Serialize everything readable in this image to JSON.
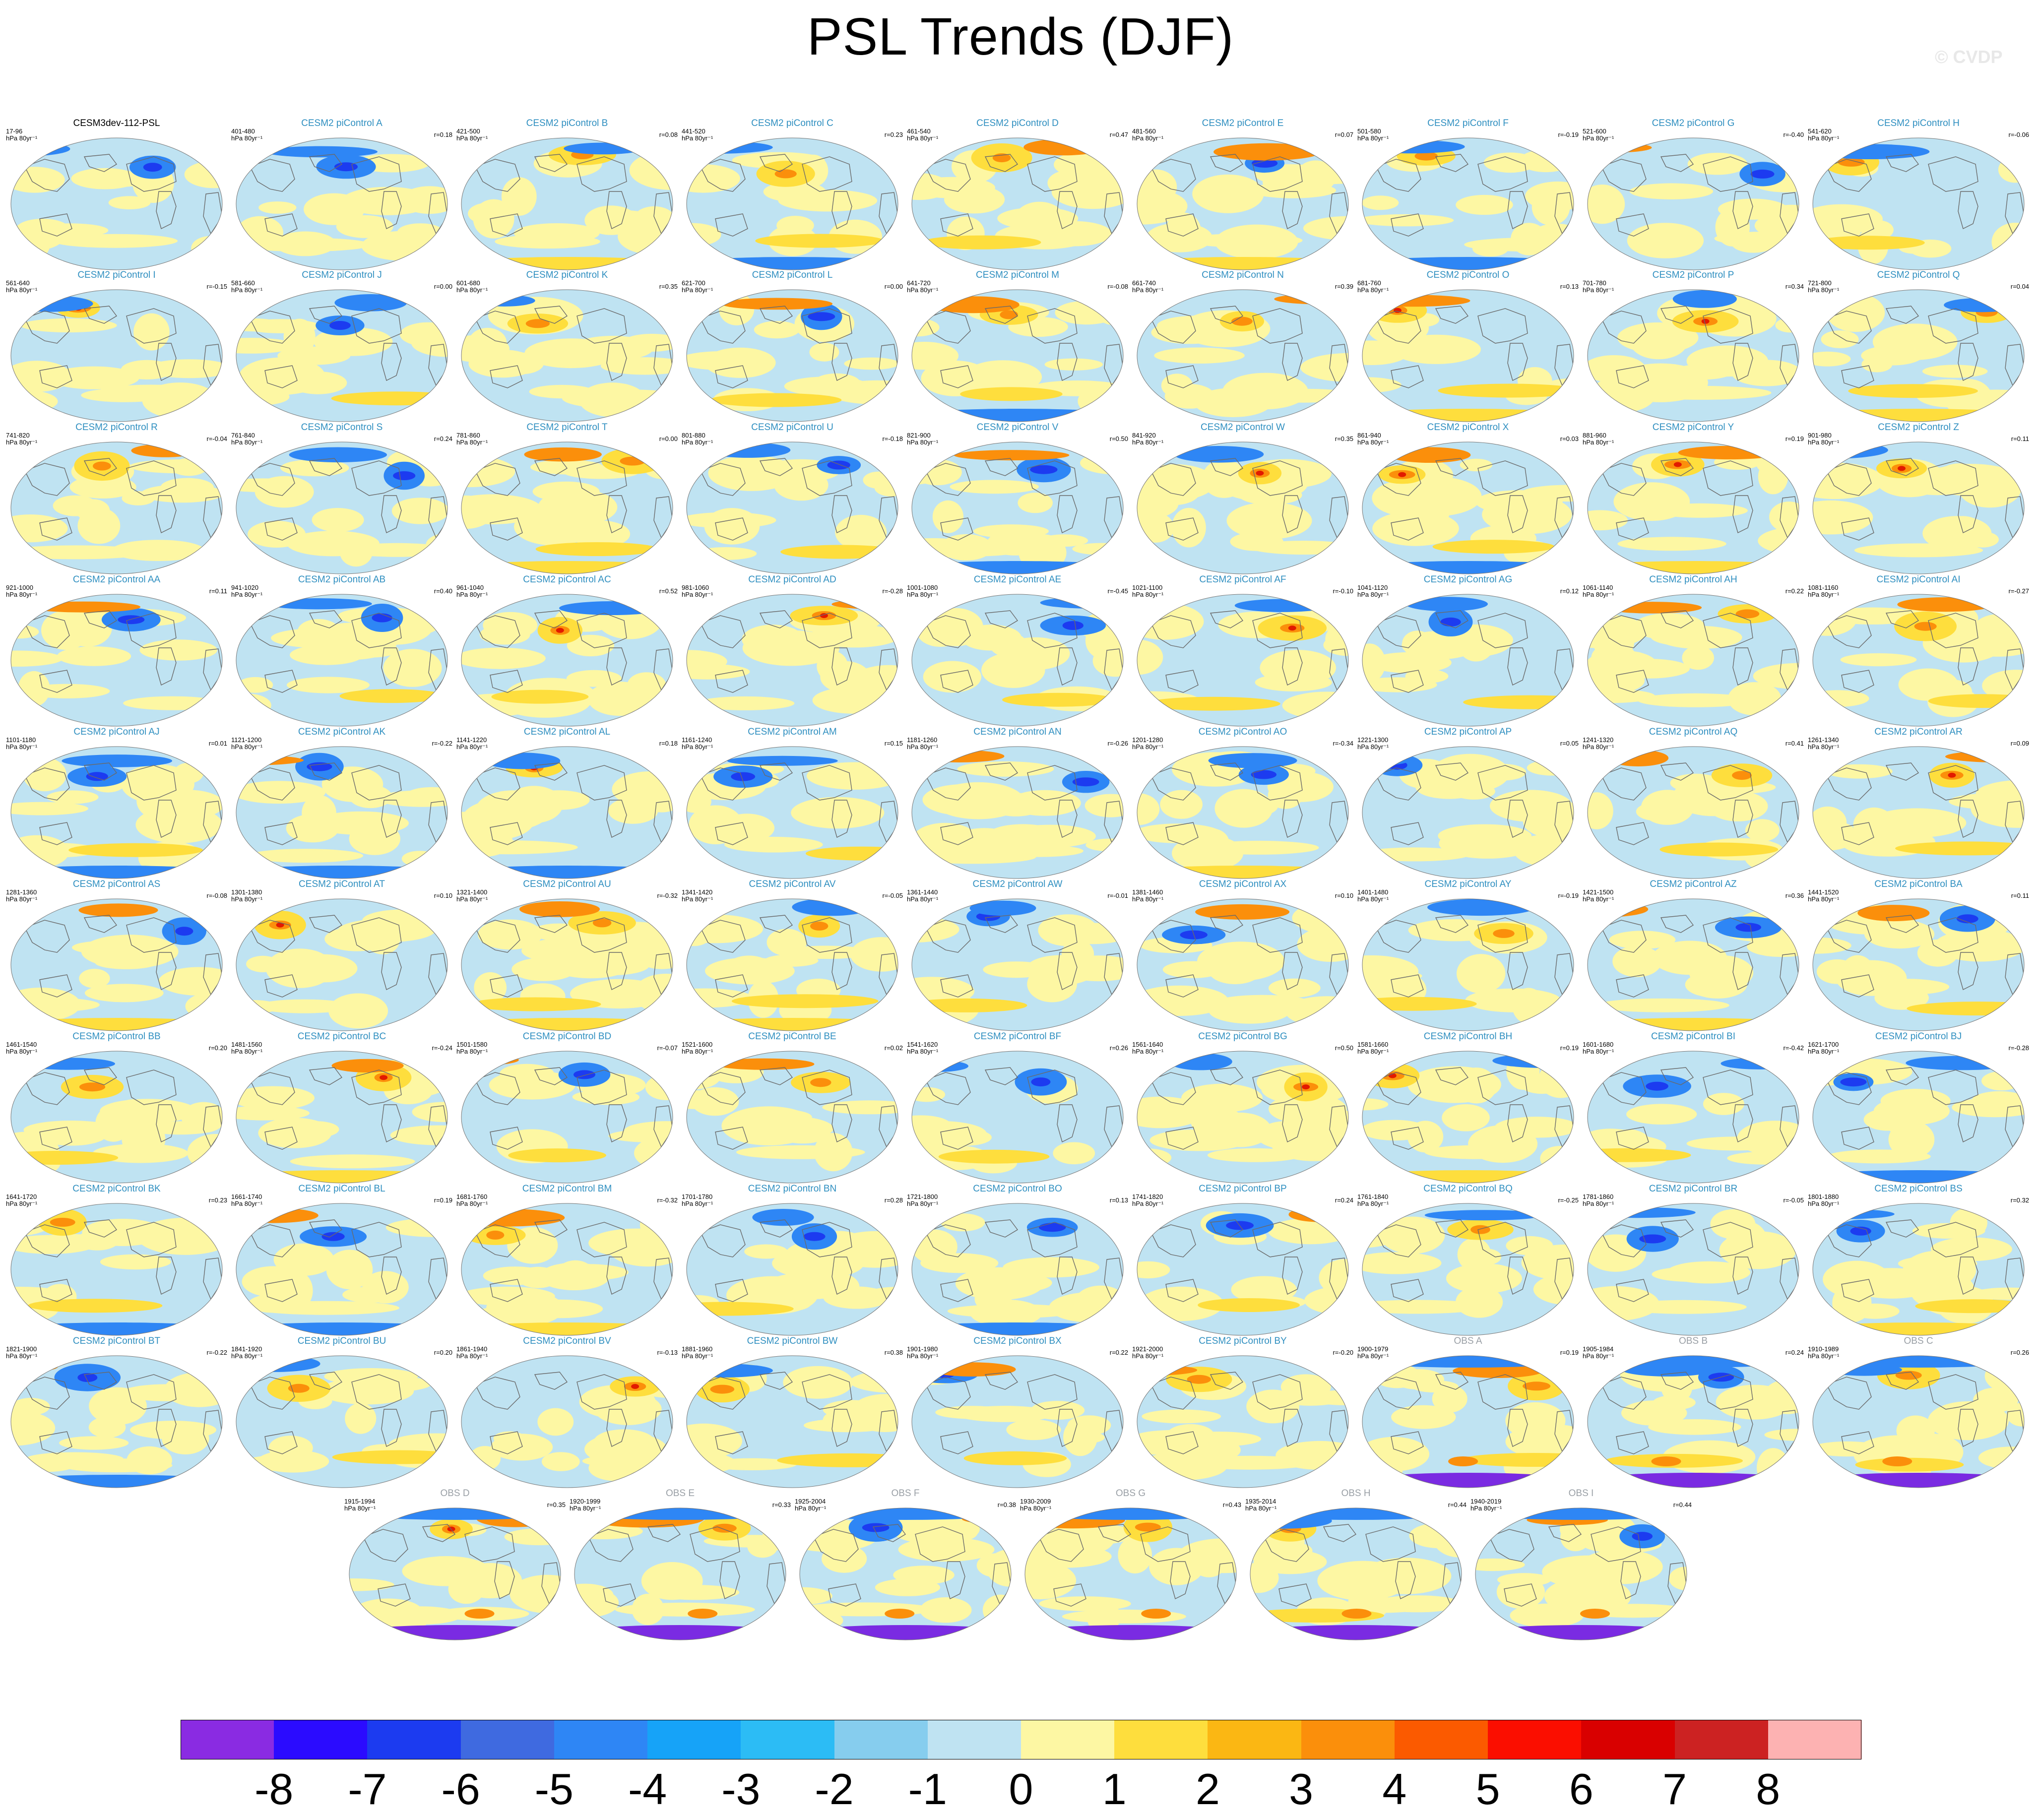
{
  "title": "PSL Trends (DJF)",
  "watermark": "© CVDP",
  "units_label": "hPa 80yr⁻¹",
  "panels": [
    {
      "title": "CESM3dev-112-PSL",
      "years": "17-96",
      "r": "",
      "kind": "first"
    },
    {
      "title": "CESM2 piControl A",
      "years": "401-480",
      "r": "r=0.18",
      "kind": "model"
    },
    {
      "title": "CESM2 piControl B",
      "years": "421-500",
      "r": "r=0.08",
      "kind": "model"
    },
    {
      "title": "CESM2 piControl C",
      "years": "441-520",
      "r": "r=0.23",
      "kind": "model"
    },
    {
      "title": "CESM2 piControl D",
      "years": "461-540",
      "r": "r=0.47",
      "kind": "model"
    },
    {
      "title": "CESM2 piControl E",
      "years": "481-560",
      "r": "r=0.07",
      "kind": "model"
    },
    {
      "title": "CESM2 piControl F",
      "years": "501-580",
      "r": "r=-0.19",
      "kind": "model"
    },
    {
      "title": "CESM2 piControl G",
      "years": "521-600",
      "r": "r=-0.40",
      "kind": "model"
    },
    {
      "title": "CESM2 piControl H",
      "years": "541-620",
      "r": "r=-0.06",
      "kind": "model"
    },
    {
      "title": "CESM2 piControl I",
      "years": "561-640",
      "r": "r=-0.15",
      "kind": "model"
    },
    {
      "title": "CESM2 piControl J",
      "years": "581-660",
      "r": "r=0.00",
      "kind": "model"
    },
    {
      "title": "CESM2 piControl K",
      "years": "601-680",
      "r": "r=0.35",
      "kind": "model"
    },
    {
      "title": "CESM2 piControl L",
      "years": "621-700",
      "r": "r=0.00",
      "kind": "model"
    },
    {
      "title": "CESM2 piControl M",
      "years": "641-720",
      "r": "r=-0.08",
      "kind": "model"
    },
    {
      "title": "CESM2 piControl N",
      "years": "661-740",
      "r": "r=0.39",
      "kind": "model"
    },
    {
      "title": "CESM2 piControl O",
      "years": "681-760",
      "r": "r=0.13",
      "kind": "model"
    },
    {
      "title": "CESM2 piControl P",
      "years": "701-780",
      "r": "r=0.34",
      "kind": "model"
    },
    {
      "title": "CESM2 piControl Q",
      "years": "721-800",
      "r": "r=0.04",
      "kind": "model"
    },
    {
      "title": "CESM2 piControl R",
      "years": "741-820",
      "r": "r=-0.04",
      "kind": "model"
    },
    {
      "title": "CESM2 piControl S",
      "years": "761-840",
      "r": "r=0.24",
      "kind": "model"
    },
    {
      "title": "CESM2 piControl T",
      "years": "781-860",
      "r": "r=0.00",
      "kind": "model"
    },
    {
      "title": "CESM2 piControl U",
      "years": "801-880",
      "r": "r=-0.18",
      "kind": "model"
    },
    {
      "title": "CESM2 piControl V",
      "years": "821-900",
      "r": "r=0.50",
      "kind": "model"
    },
    {
      "title": "CESM2 piControl W",
      "years": "841-920",
      "r": "r=0.35",
      "kind": "model"
    },
    {
      "title": "CESM2 piControl X",
      "years": "861-940",
      "r": "r=0.03",
      "kind": "model"
    },
    {
      "title": "CESM2 piControl Y",
      "years": "881-960",
      "r": "r=0.19",
      "kind": "model"
    },
    {
      "title": "CESM2 piControl Z",
      "years": "901-980",
      "r": "r=0.11",
      "kind": "model"
    },
    {
      "title": "CESM2 piControl AA",
      "years": "921-1000",
      "r": "r=0.11",
      "kind": "model"
    },
    {
      "title": "CESM2 piControl AB",
      "years": "941-1020",
      "r": "r=0.40",
      "kind": "model"
    },
    {
      "title": "CESM2 piControl AC",
      "years": "961-1040",
      "r": "r=0.52",
      "kind": "model"
    },
    {
      "title": "CESM2 piControl AD",
      "years": "981-1060",
      "r": "r=-0.28",
      "kind": "model"
    },
    {
      "title": "CESM2 piControl AE",
      "years": "1001-1080",
      "r": "r=-0.45",
      "kind": "model"
    },
    {
      "title": "CESM2 piControl AF",
      "years": "1021-1100",
      "r": "r=-0.10",
      "kind": "model"
    },
    {
      "title": "CESM2 piControl AG",
      "years": "1041-1120",
      "r": "r=0.12",
      "kind": "model"
    },
    {
      "title": "CESM2 piControl AH",
      "years": "1061-1140",
      "r": "r=0.22",
      "kind": "model"
    },
    {
      "title": "CESM2 piControl AI",
      "years": "1081-1160",
      "r": "r=-0.27",
      "kind": "model"
    },
    {
      "title": "CESM2 piControl AJ",
      "years": "1101-1180",
      "r": "r=0.01",
      "kind": "model"
    },
    {
      "title": "CESM2 piControl AK",
      "years": "1121-1200",
      "r": "r=-0.22",
      "kind": "model"
    },
    {
      "title": "CESM2 piControl AL",
      "years": "1141-1220",
      "r": "r=0.18",
      "kind": "model"
    },
    {
      "title": "CESM2 piControl AM",
      "years": "1161-1240",
      "r": "r=0.15",
      "kind": "model"
    },
    {
      "title": "CESM2 piControl AN",
      "years": "1181-1260",
      "r": "r=-0.26",
      "kind": "model"
    },
    {
      "title": "CESM2 piControl AO",
      "years": "1201-1280",
      "r": "r=-0.34",
      "kind": "model"
    },
    {
      "title": "CESM2 piControl AP",
      "years": "1221-1300",
      "r": "r=0.05",
      "kind": "model"
    },
    {
      "title": "CESM2 piControl AQ",
      "years": "1241-1320",
      "r": "r=0.41",
      "kind": "model"
    },
    {
      "title": "CESM2 piControl AR",
      "years": "1261-1340",
      "r": "r=0.09",
      "kind": "model"
    },
    {
      "title": "CESM2 piControl AS",
      "years": "1281-1360",
      "r": "r=-0.08",
      "kind": "model"
    },
    {
      "title": "CESM2 piControl AT",
      "years": "1301-1380",
      "r": "r=0.10",
      "kind": "model"
    },
    {
      "title": "CESM2 piControl AU",
      "years": "1321-1400",
      "r": "r=-0.32",
      "kind": "model"
    },
    {
      "title": "CESM2 piControl AV",
      "years": "1341-1420",
      "r": "r=-0.05",
      "kind": "model"
    },
    {
      "title": "CESM2 piControl AW",
      "years": "1361-1440",
      "r": "r=-0.01",
      "kind": "model"
    },
    {
      "title": "CESM2 piControl AX",
      "years": "1381-1460",
      "r": "r=0.10",
      "kind": "model"
    },
    {
      "title": "CESM2 piControl AY",
      "years": "1401-1480",
      "r": "r=-0.19",
      "kind": "model"
    },
    {
      "title": "CESM2 piControl AZ",
      "years": "1421-1500",
      "r": "r=0.36",
      "kind": "model"
    },
    {
      "title": "CESM2 piControl BA",
      "years": "1441-1520",
      "r": "r=0.11",
      "kind": "model"
    },
    {
      "title": "CESM2 piControl BB",
      "years": "1461-1540",
      "r": "r=0.20",
      "kind": "model"
    },
    {
      "title": "CESM2 piControl BC",
      "years": "1481-1560",
      "r": "r=-0.24",
      "kind": "model"
    },
    {
      "title": "CESM2 piControl BD",
      "years": "1501-1580",
      "r": "r=-0.07",
      "kind": "model"
    },
    {
      "title": "CESM2 piControl BE",
      "years": "1521-1600",
      "r": "r=0.02",
      "kind": "model"
    },
    {
      "title": "CESM2 piControl BF",
      "years": "1541-1620",
      "r": "r=0.26",
      "kind": "model"
    },
    {
      "title": "CESM2 piControl BG",
      "years": "1561-1640",
      "r": "r=0.50",
      "kind": "model"
    },
    {
      "title": "CESM2 piControl BH",
      "years": "1581-1660",
      "r": "r=0.19",
      "kind": "model"
    },
    {
      "title": "CESM2 piControl BI",
      "years": "1601-1680",
      "r": "r=-0.42",
      "kind": "model"
    },
    {
      "title": "CESM2 piControl BJ",
      "years": "1621-1700",
      "r": "r=-0.28",
      "kind": "model"
    },
    {
      "title": "CESM2 piControl BK",
      "years": "1641-1720",
      "r": "r=0.23",
      "kind": "model"
    },
    {
      "title": "CESM2 piControl BL",
      "years": "1661-1740",
      "r": "r=0.19",
      "kind": "model"
    },
    {
      "title": "CESM2 piControl BM",
      "years": "1681-1760",
      "r": "r=-0.32",
      "kind": "model"
    },
    {
      "title": "CESM2 piControl BN",
      "years": "1701-1780",
      "r": "r=0.28",
      "kind": "model"
    },
    {
      "title": "CESM2 piControl BO",
      "years": "1721-1800",
      "r": "r=0.13",
      "kind": "model"
    },
    {
      "title": "CESM2 piControl BP",
      "years": "1741-1820",
      "r": "r=0.24",
      "kind": "model"
    },
    {
      "title": "CESM2 piControl BQ",
      "years": "1761-1840",
      "r": "r=-0.25",
      "kind": "model"
    },
    {
      "title": "CESM2 piControl BR",
      "years": "1781-1860",
      "r": "r=-0.05",
      "kind": "model"
    },
    {
      "title": "CESM2 piControl BS",
      "years": "1801-1880",
      "r": "r=0.32",
      "kind": "model"
    },
    {
      "title": "CESM2 piControl BT",
      "years": "1821-1900",
      "r": "r=-0.22",
      "kind": "model"
    },
    {
      "title": "CESM2 piControl BU",
      "years": "1841-1920",
      "r": "r=0.20",
      "kind": "model"
    },
    {
      "title": "CESM2 piControl BV",
      "years": "1861-1940",
      "r": "r=-0.13",
      "kind": "model"
    },
    {
      "title": "CESM2 piControl BW",
      "years": "1881-1960",
      "r": "r=0.38",
      "kind": "model"
    },
    {
      "title": "CESM2 piControl BX",
      "years": "1901-1980",
      "r": "r=0.22",
      "kind": "model"
    },
    {
      "title": "CESM2 piControl BY",
      "years": "1921-2000",
      "r": "r=-0.20",
      "kind": "model"
    },
    {
      "title": "OBS A",
      "years": "1900-1979",
      "r": "r=0.19",
      "kind": "obs"
    },
    {
      "title": "OBS B",
      "years": "1905-1984",
      "r": "r=0.24",
      "kind": "obs"
    },
    {
      "title": "OBS C",
      "years": "1910-1989",
      "r": "r=0.26",
      "kind": "obs"
    },
    {
      "title": "OBS D",
      "years": "1915-1994",
      "r": "r=0.35",
      "kind": "obs"
    },
    {
      "title": "OBS E",
      "years": "1920-1999",
      "r": "r=0.33",
      "kind": "obs"
    },
    {
      "title": "OBS F",
      "years": "1925-2004",
      "r": "r=0.38",
      "kind": "obs"
    },
    {
      "title": "OBS G",
      "years": "1930-2009",
      "r": "r=0.43",
      "kind": "obs"
    },
    {
      "title": "OBS H",
      "years": "1935-2014",
      "r": "r=0.44",
      "kind": "obs"
    },
    {
      "title": "OBS I",
      "years": "1940-2019",
      "r": "r=0.44",
      "kind": "obs"
    }
  ],
  "colorbar": {
    "colors": [
      "#8a2be2",
      "#2b0bff",
      "#1c3bf0",
      "#3f6ae0",
      "#2e86f5",
      "#16a3f8",
      "#2cbcf5",
      "#86cdee",
      "#bfe3f2",
      "#fdf7a3",
      "#fede3d",
      "#fbb713",
      "#fb8f0b",
      "#fb5a00",
      "#fb0e00",
      "#d90000",
      "#cc2222",
      "#fdb2b2"
    ],
    "ticks": [
      "-8",
      "-7",
      "-6",
      "-5",
      "-4",
      "-3",
      "-2",
      "-1",
      "0",
      "1",
      "2",
      "3",
      "4",
      "5",
      "6",
      "7",
      "8"
    ]
  },
  "palette": {
    "ocean_neg": "#bfe3f2",
    "pos_light": "#fdf7a3",
    "pos_mid": "#fede3d",
    "pos_strong": "#fb8f0b",
    "pos_max": "#e21a00",
    "neg_mid": "#2e86f5",
    "neg_strong": "#1c3bf0",
    "neg_max": "#7a2be2",
    "coast": "#6a6a6a"
  }
}
